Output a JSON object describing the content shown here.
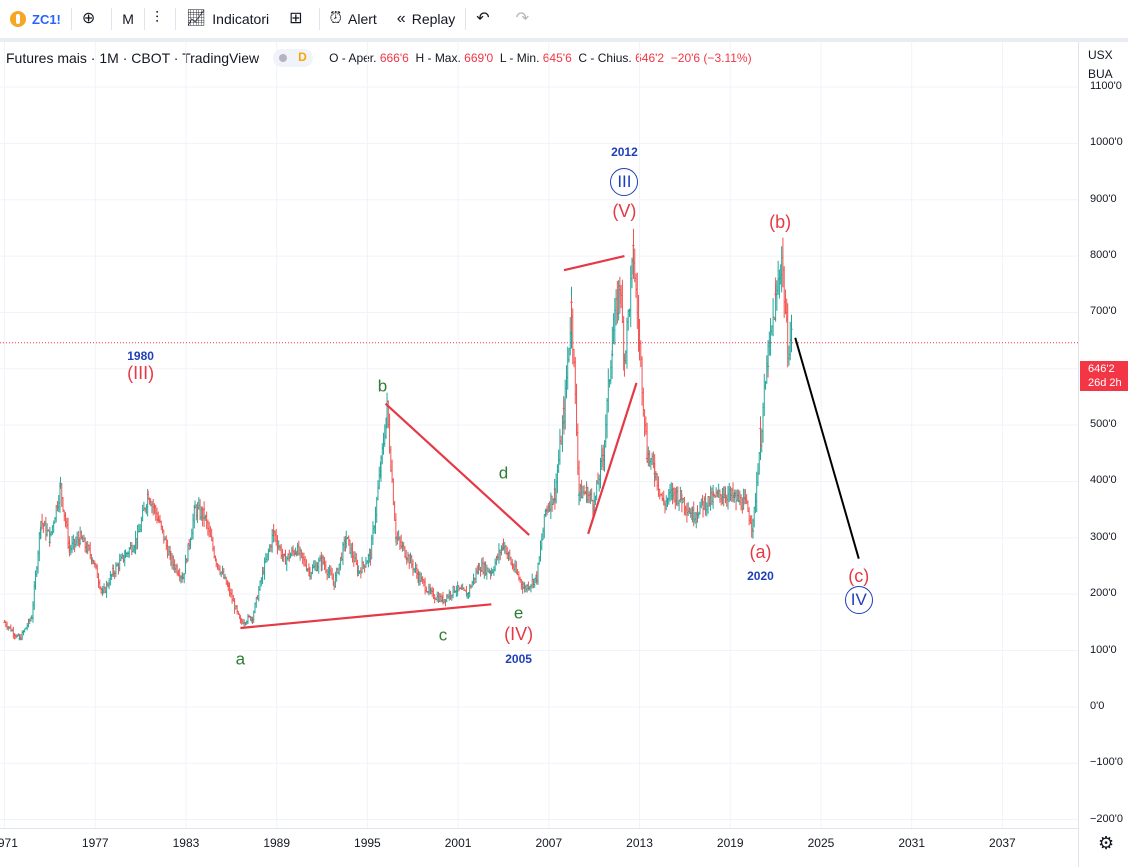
{
  "toolbar": {
    "symbol": "ZC1!",
    "interval": "M",
    "indicators_label": "Indicatori",
    "alert_label": "Alert",
    "replay_label": "Replay"
  },
  "legend": {
    "title": "Futures mais · 1M · CBOT · TradingView",
    "badge": "D",
    "o_label": "O - Aper.",
    "o_value": "666'6",
    "h_label": "H - Max.",
    "h_value": "669'0",
    "l_label": "L - Min.",
    "l_value": "645'6",
    "c_label": "C - Chius.",
    "c_value": "646'2",
    "change": "−20'6 (−3.11%)"
  },
  "axis": {
    "currency": "USX",
    "unit": "BUA",
    "last_price": "646'2",
    "countdown": "26d 2h"
  },
  "chart_data": {
    "type": "line",
    "title": "Futures mais · 1M · CBOT · TradingView",
    "xlabel": "",
    "ylabel": "",
    "x_ticks": [
      "1971",
      "1977",
      "1983",
      "1989",
      "1995",
      "2001",
      "2007",
      "2013",
      "2019",
      "2025",
      "2031",
      "2037"
    ],
    "y_ticks": [
      {
        "value": 1100,
        "label": "1100'0"
      },
      {
        "value": 1000,
        "label": "1000'0"
      },
      {
        "value": 900,
        "label": "900'0"
      },
      {
        "value": 800,
        "label": "800'0"
      },
      {
        "value": 700,
        "label": "700'0"
      },
      {
        "value": 600,
        "label": "600'0"
      },
      {
        "value": 500,
        "label": "500'0"
      },
      {
        "value": 400,
        "label": "400'0"
      },
      {
        "value": 300,
        "label": "300'0"
      },
      {
        "value": 200,
        "label": "200'0"
      },
      {
        "value": 100,
        "label": "100'0"
      },
      {
        "value": 0,
        "label": "0'0"
      },
      {
        "value": -100,
        "label": "−100'0"
      },
      {
        "value": -200,
        "label": "−200'0"
      }
    ],
    "xlim": [
      1970.7,
      2042.0
    ],
    "ylim": [
      -215,
      1180
    ],
    "last_price": 646.25,
    "colors": {
      "up": "#26a69a",
      "down": "#ef5350",
      "trend": "#e53945",
      "projection": "#000000"
    },
    "series": [
      {
        "points": [
          [
            1971.0,
            150
          ],
          [
            1972.0,
            120
          ],
          [
            1972.8,
            160
          ],
          [
            1973.4,
            330
          ],
          [
            1974.0,
            300
          ],
          [
            1974.7,
            390
          ],
          [
            1975.3,
            280
          ],
          [
            1976.0,
            300
          ],
          [
            1976.8,
            265
          ],
          [
            1977.5,
            200
          ],
          [
            1978.2,
            240
          ],
          [
            1979.0,
            270
          ],
          [
            1979.8,
            300
          ],
          [
            1980.5,
            380
          ],
          [
            1981.2,
            330
          ],
          [
            1982.0,
            260
          ],
          [
            1982.8,
            230
          ],
          [
            1983.6,
            350
          ],
          [
            1984.2,
            340
          ],
          [
            1985.0,
            260
          ],
          [
            1985.8,
            210
          ],
          [
            1986.6,
            150
          ],
          [
            1987.4,
            160
          ],
          [
            1988.2,
            250
          ],
          [
            1988.8,
            310
          ],
          [
            1989.5,
            260
          ],
          [
            1990.3,
            280
          ],
          [
            1991.2,
            240
          ],
          [
            1992.0,
            260
          ],
          [
            1992.8,
            220
          ],
          [
            1993.6,
            300
          ],
          [
            1994.4,
            240
          ],
          [
            1995.2,
            270
          ],
          [
            1995.9,
            430
          ],
          [
            1996.3,
            530
          ],
          [
            1996.9,
            300
          ],
          [
            1997.6,
            270
          ],
          [
            1998.4,
            230
          ],
          [
            1999.2,
            200
          ],
          [
            2000.0,
            190
          ],
          [
            2000.8,
            210
          ],
          [
            2001.6,
            200
          ],
          [
            2002.4,
            250
          ],
          [
            2003.2,
            240
          ],
          [
            2004.0,
            290
          ],
          [
            2004.6,
            250
          ],
          [
            2005.4,
            210
          ],
          [
            2006.2,
            230
          ],
          [
            2006.8,
            350
          ],
          [
            2007.4,
            380
          ],
          [
            2008.0,
            520
          ],
          [
            2008.5,
            710
          ],
          [
            2009.0,
            380
          ],
          [
            2009.5,
            380
          ],
          [
            2010.0,
            360
          ],
          [
            2010.6,
            450
          ],
          [
            2011.2,
            650
          ],
          [
            2011.7,
            750
          ],
          [
            2012.0,
            620
          ],
          [
            2012.6,
            800
          ],
          [
            2013.0,
            640
          ],
          [
            2013.5,
            450
          ],
          [
            2014.0,
            420
          ],
          [
            2014.6,
            360
          ],
          [
            2015.2,
            380
          ],
          [
            2015.8,
            370
          ],
          [
            2016.5,
            340
          ],
          [
            2017.2,
            360
          ],
          [
            2017.9,
            370
          ],
          [
            2018.6,
            380
          ],
          [
            2019.3,
            370
          ],
          [
            2020.0,
            360
          ],
          [
            2020.5,
            320
          ],
          [
            2021.0,
            480
          ],
          [
            2021.5,
            620
          ],
          [
            2022.0,
            720
          ],
          [
            2022.4,
            800
          ],
          [
            2022.8,
            640
          ],
          [
            2023.1,
            660
          ]
        ]
      }
    ],
    "trend_lines": [
      {
        "from": [
          1986.6,
          140
        ],
        "to": [
          2003.2,
          182
        ]
      },
      {
        "from": [
          1996.2,
          538
        ],
        "to": [
          2005.7,
          305
        ]
      },
      {
        "from": [
          2008.0,
          775
        ],
        "to": [
          2012.0,
          800
        ]
      },
      {
        "from": [
          2009.6,
          307
        ],
        "to": [
          2012.8,
          575
        ]
      }
    ],
    "projection": [
      [
        2023.3,
        655
      ],
      [
        2027.5,
        263
      ]
    ],
    "annotations": [
      {
        "text": "(III)",
        "x": 1980.0,
        "y": 593,
        "style": "red"
      },
      {
        "text": "1980",
        "x": 1980.0,
        "y": 623,
        "style": "blue"
      },
      {
        "text": "b",
        "x": 1996.0,
        "y": 570,
        "style": "green"
      },
      {
        "text": "d",
        "x": 2004.0,
        "y": 415,
        "style": "green"
      },
      {
        "text": "a",
        "x": 1986.6,
        "y": 85,
        "style": "green"
      },
      {
        "text": "c",
        "x": 2000.0,
        "y": 127,
        "style": "green"
      },
      {
        "text": "e",
        "x": 2005.0,
        "y": 167,
        "style": "green"
      },
      {
        "text": "(IV)",
        "x": 2005.0,
        "y": 129,
        "style": "red"
      },
      {
        "text": "2005",
        "x": 2005.0,
        "y": 85,
        "style": "blue"
      },
      {
        "text": "(V)",
        "x": 2012.0,
        "y": 880,
        "style": "red"
      },
      {
        "text": "III",
        "x": 2012.0,
        "y": 932,
        "style": "circle"
      },
      {
        "text": "2012",
        "x": 2012.0,
        "y": 985,
        "style": "blue"
      },
      {
        "text": "(b)",
        "x": 2022.3,
        "y": 860,
        "style": "red"
      },
      {
        "text": "(a)",
        "x": 2021.0,
        "y": 274,
        "style": "red"
      },
      {
        "text": "2020",
        "x": 2021.0,
        "y": 232,
        "style": "blue"
      },
      {
        "text": "(c)",
        "x": 2027.5,
        "y": 232,
        "style": "red"
      },
      {
        "text": "IV",
        "x": 2027.5,
        "y": 190,
        "style": "circle"
      }
    ]
  }
}
